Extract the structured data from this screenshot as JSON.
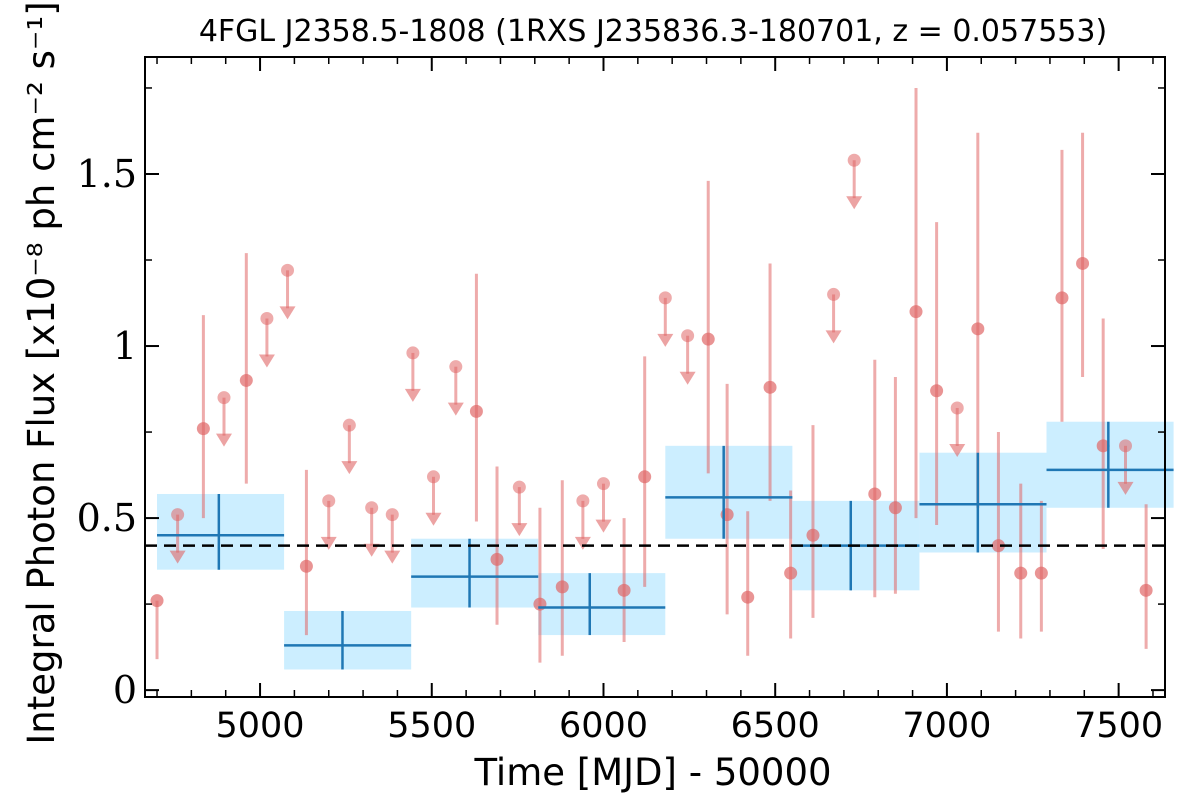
{
  "chart_data": {
    "type": "scatter",
    "title": "4FGL J2358.5-1808 (1RXS J235836.3-180701, z = 0.057553)",
    "xlabel": "Time [MJD] - 50000",
    "ylabel": "Integral Photon Flux [x10⁻⁸ ph cm⁻² s⁻¹]",
    "xlim": [
      4665,
      7635
    ],
    "ylim": [
      -0.02,
      1.84
    ],
    "xticks": [
      5000,
      5500,
      6000,
      6500,
      7000,
      7500
    ],
    "xtick_labels": [
      "5000",
      "5500",
      "6000",
      "6500",
      "7000",
      "7500"
    ],
    "yticks": [
      0,
      0.5,
      1,
      1.5
    ],
    "ytick_labels": [
      "0",
      "0.5",
      "1",
      "1.5"
    ],
    "grid": false,
    "mean_flux": 0.42,
    "colors": {
      "points": "#e06666",
      "binned_line": "#1f77b4",
      "binned_box": "#cceeff",
      "mean_line": "#000000"
    },
    "points": [
      {
        "x": 4700,
        "y": 0.26,
        "lo": 0.09,
        "hi": null
      },
      {
        "x": 4835,
        "y": 0.76,
        "lo": 0.5,
        "hi": 1.09
      },
      {
        "x": 4960,
        "y": 0.9,
        "lo": 0.6,
        "hi": 1.27
      },
      {
        "x": 5135,
        "y": 0.36,
        "lo": 0.16,
        "hi": 0.64
      },
      {
        "x": 5630,
        "y": 0.81,
        "lo": 0.49,
        "hi": 1.21
      },
      {
        "x": 5690,
        "y": 0.38,
        "lo": 0.19,
        "hi": 0.65
      },
      {
        "x": 5815,
        "y": 0.25,
        "lo": 0.08,
        "hi": 0.53
      },
      {
        "x": 5880,
        "y": 0.3,
        "lo": 0.1,
        "hi": 0.61
      },
      {
        "x": 6060,
        "y": 0.29,
        "lo": 0.14,
        "hi": 0.5
      },
      {
        "x": 6120,
        "y": 0.62,
        "lo": 0.3,
        "hi": 0.97
      },
      {
        "x": 6305,
        "y": 1.02,
        "lo": 0.63,
        "hi": 1.48
      },
      {
        "x": 6360,
        "y": 0.51,
        "lo": 0.22,
        "hi": 0.89
      },
      {
        "x": 6420,
        "y": 0.27,
        "lo": 0.1,
        "hi": 0.52
      },
      {
        "x": 6485,
        "y": 0.88,
        "lo": 0.55,
        "hi": 1.24
      },
      {
        "x": 6545,
        "y": 0.34,
        "lo": 0.15,
        "hi": 0.58
      },
      {
        "x": 6610,
        "y": 0.45,
        "lo": 0.21,
        "hi": 0.77
      },
      {
        "x": 6790,
        "y": 0.57,
        "lo": 0.27,
        "hi": 0.96
      },
      {
        "x": 6850,
        "y": 0.53,
        "lo": 0.28,
        "hi": 0.91
      },
      {
        "x": 6910,
        "y": 1.1,
        "lo": 0.5,
        "hi": 1.75
      },
      {
        "x": 6970,
        "y": 0.87,
        "lo": 0.48,
        "hi": 1.36
      },
      {
        "x": 7090,
        "y": 1.05,
        "lo": 0.53,
        "hi": 1.62
      },
      {
        "x": 7150,
        "y": 0.42,
        "lo": 0.17,
        "hi": 0.75
      },
      {
        "x": 7215,
        "y": 0.34,
        "lo": 0.15,
        "hi": 0.6
      },
      {
        "x": 7275,
        "y": 0.34,
        "lo": 0.17,
        "hi": 0.55
      },
      {
        "x": 7335,
        "y": 1.14,
        "lo": 0.78,
        "hi": 1.57
      },
      {
        "x": 7395,
        "y": 1.24,
        "lo": 0.91,
        "hi": 1.62
      },
      {
        "x": 7455,
        "y": 0.71,
        "lo": 0.41,
        "hi": 1.08
      },
      {
        "x": 7580,
        "y": 0.29,
        "lo": 0.12,
        "hi": 0.54
      }
    ],
    "upper_limits": [
      {
        "x": 4760,
        "y": 0.51
      },
      {
        "x": 4895,
        "y": 0.85
      },
      {
        "x": 5020,
        "y": 1.08
      },
      {
        "x": 5080,
        "y": 1.22
      },
      {
        "x": 5200,
        "y": 0.55
      },
      {
        "x": 5260,
        "y": 0.77
      },
      {
        "x": 5325,
        "y": 0.53
      },
      {
        "x": 5385,
        "y": 0.51
      },
      {
        "x": 5445,
        "y": 0.98
      },
      {
        "x": 5505,
        "y": 0.62
      },
      {
        "x": 5570,
        "y": 0.94
      },
      {
        "x": 5755,
        "y": 0.59
      },
      {
        "x": 5940,
        "y": 0.55
      },
      {
        "x": 6000,
        "y": 0.6
      },
      {
        "x": 6180,
        "y": 1.14
      },
      {
        "x": 6245,
        "y": 1.03
      },
      {
        "x": 6670,
        "y": 1.15
      },
      {
        "x": 6730,
        "y": 1.54
      },
      {
        "x": 7030,
        "y": 0.82
      },
      {
        "x": 7520,
        "y": 0.71
      }
    ],
    "binned": [
      {
        "x0": 4700,
        "x1": 5070,
        "y": 0.45,
        "ylo": 0.35,
        "yhi": 0.57,
        "xc": 4880
      },
      {
        "x0": 5070,
        "x1": 5440,
        "y": 0.13,
        "ylo": 0.06,
        "yhi": 0.23,
        "xc": 5240
      },
      {
        "x0": 5440,
        "x1": 5810,
        "y": 0.33,
        "ylo": 0.24,
        "yhi": 0.44,
        "xc": 5610
      },
      {
        "x0": 5810,
        "x1": 6180,
        "y": 0.24,
        "ylo": 0.16,
        "yhi": 0.34,
        "xc": 5960
      },
      {
        "x0": 6180,
        "x1": 6550,
        "y": 0.56,
        "ylo": 0.44,
        "yhi": 0.71,
        "xc": 6350
      },
      {
        "x0": 6550,
        "x1": 6920,
        "y": 0.42,
        "ylo": 0.29,
        "yhi": 0.55,
        "xc": 6720
      },
      {
        "x0": 6920,
        "x1": 7290,
        "y": 0.54,
        "ylo": 0.4,
        "yhi": 0.69,
        "xc": 7090
      },
      {
        "x0": 7290,
        "x1": 7660,
        "y": 0.64,
        "ylo": 0.53,
        "yhi": 0.78,
        "xc": 7470
      }
    ]
  }
}
